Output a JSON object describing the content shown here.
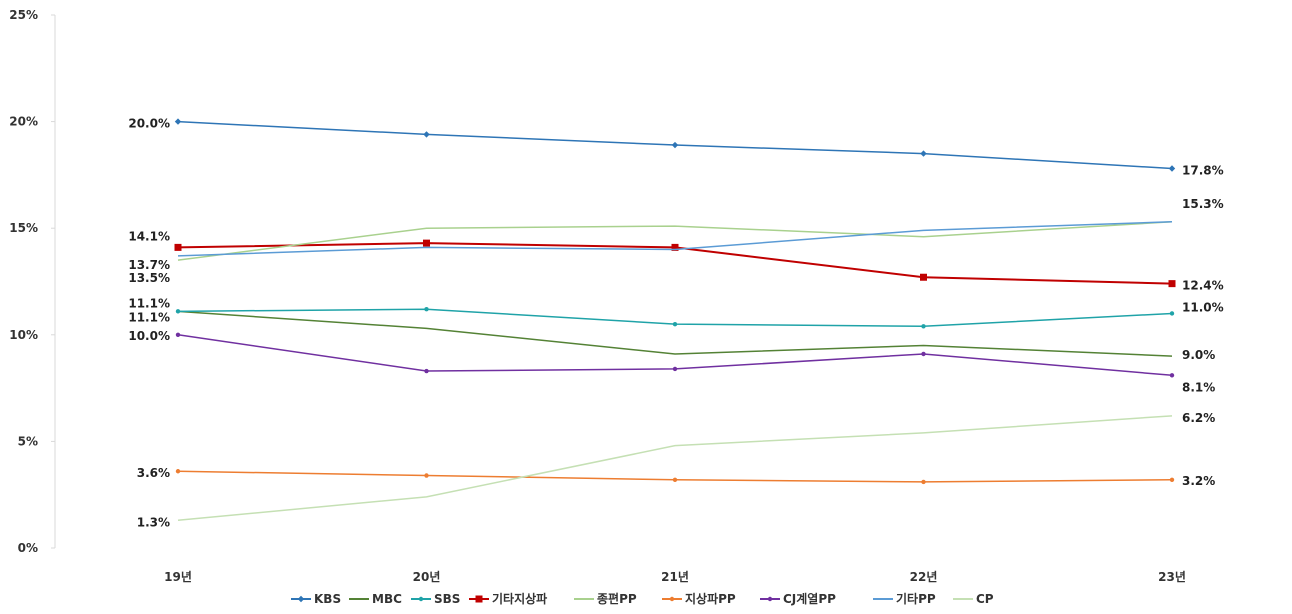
{
  "chart_data": {
    "type": "line",
    "categories": [
      "19년",
      "20년",
      "21년",
      "22년",
      "23년"
    ],
    "ylim": [
      0,
      25
    ],
    "yticks": [
      "0%",
      "5%",
      "10%",
      "15%",
      "20%",
      "25%"
    ],
    "grid": false,
    "legend_position": "bottom",
    "series": [
      {
        "name": "KBS",
        "values": [
          20.0,
          19.4,
          18.9,
          18.5,
          17.8
        ],
        "color": "#2e75b6",
        "marker": "diamond",
        "start_label": "20.0%",
        "end_label": "17.8%"
      },
      {
        "name": "MBC",
        "values": [
          11.1,
          10.3,
          9.1,
          9.5,
          9.0
        ],
        "color": "#548235",
        "marker": "none",
        "start_label": "11.1%",
        "end_label": "9.0%"
      },
      {
        "name": "SBS",
        "values": [
          11.1,
          11.2,
          10.5,
          10.4,
          11.0
        ],
        "color": "#1fa3a8",
        "marker": "dot",
        "start_label": "11.1%",
        "end_label": "11.0%"
      },
      {
        "name": "기타지상파",
        "values": [
          14.1,
          14.3,
          14.1,
          12.7,
          12.4
        ],
        "color": "#c00000",
        "marker": "square",
        "start_label": "14.1%",
        "end_label": "12.4%"
      },
      {
        "name": "종편PP",
        "values": [
          13.5,
          15.0,
          15.1,
          14.6,
          15.3
        ],
        "color": "#a9d18e",
        "marker": "none",
        "start_label": "13.5%",
        "end_label": "15.3%"
      },
      {
        "name": "지상파PP",
        "values": [
          3.6,
          3.4,
          3.2,
          3.1,
          3.2
        ],
        "color": "#ed7d31",
        "marker": "dot",
        "start_label": "3.6%",
        "end_label": "3.2%"
      },
      {
        "name": "CJ계열PP",
        "values": [
          10.0,
          8.3,
          8.4,
          9.1,
          8.1
        ],
        "color": "#7030a0",
        "marker": "dot",
        "start_label": "10.0%",
        "end_label": "8.1%"
      },
      {
        "name": "기타PP",
        "values": [
          13.7,
          14.1,
          14.0,
          14.9,
          15.3
        ],
        "color": "#5b9bd5",
        "marker": "none",
        "start_label": "13.7%",
        "end_label": ""
      },
      {
        "name": "CP",
        "values": [
          1.3,
          2.4,
          4.8,
          5.4,
          6.2
        ],
        "color": "#c5e0b4",
        "marker": "none",
        "start_label": "1.3%",
        "end_label": "6.2%"
      }
    ]
  }
}
